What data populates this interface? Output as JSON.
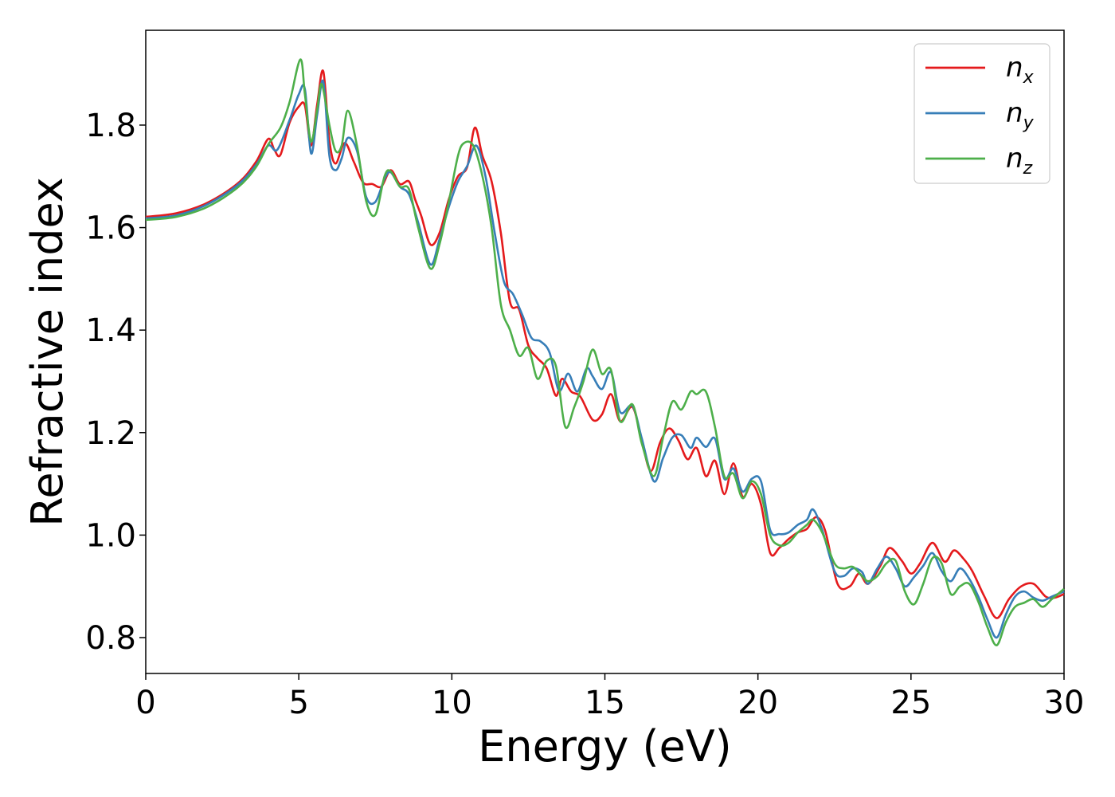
{
  "chart_data": {
    "type": "line",
    "title": "",
    "xlabel": "Energy (eV)",
    "ylabel": "Refractive index",
    "xlim": [
      0,
      30
    ],
    "ylim": [
      0.73,
      1.985
    ],
    "xticks": [
      0,
      5,
      10,
      15,
      20,
      25,
      30
    ],
    "yticks": [
      0.8,
      1.0,
      1.2,
      1.4,
      1.6,
      1.8
    ],
    "xtick_labels": [
      "0",
      "5",
      "10",
      "15",
      "20",
      "25",
      "30"
    ],
    "ytick_labels": [
      "0.8",
      "1.0",
      "1.2",
      "1.4",
      "1.6",
      "1.8"
    ],
    "grid": false,
    "legend_position": "top-right",
    "series": [
      {
        "name": "n_x",
        "label_base": "n",
        "label_sub": "x",
        "color": "#e41a1c",
        "x": [
          0,
          1,
          2,
          3,
          3.6,
          4.0,
          4.2,
          4.4,
          4.7,
          5.0,
          5.2,
          5.4,
          5.6,
          5.8,
          6.0,
          6.2,
          6.5,
          6.8,
          7.1,
          7.4,
          7.7,
          8.0,
          8.3,
          8.6,
          8.8,
          9.0,
          9.3,
          9.6,
          9.9,
          10.2,
          10.5,
          10.75,
          11.0,
          11.3,
          11.6,
          11.9,
          12.2,
          12.5,
          12.8,
          13.1,
          13.4,
          13.6,
          13.9,
          14.2,
          14.6,
          14.9,
          15.2,
          15.5,
          15.9,
          16.2,
          16.5,
          16.8,
          17.1,
          17.4,
          17.7,
          18.0,
          18.3,
          18.6,
          18.9,
          19.2,
          19.5,
          19.8,
          20.1,
          20.4,
          20.7,
          21.0,
          21.3,
          21.6,
          21.9,
          22.2,
          22.6,
          23.0,
          23.3,
          23.6,
          24.0,
          24.3,
          24.7,
          25.0,
          25.3,
          25.7,
          26.1,
          26.4,
          26.7,
          27.0,
          27.4,
          27.8,
          28.2,
          28.6,
          29.0,
          29.4,
          29.7,
          30.0
        ],
        "y": [
          1.621,
          1.628,
          1.648,
          1.686,
          1.728,
          1.773,
          1.752,
          1.742,
          1.805,
          1.836,
          1.838,
          1.76,
          1.84,
          1.905,
          1.77,
          1.725,
          1.765,
          1.728,
          1.688,
          1.685,
          1.68,
          1.712,
          1.685,
          1.69,
          1.655,
          1.623,
          1.567,
          1.59,
          1.655,
          1.7,
          1.718,
          1.795,
          1.74,
          1.69,
          1.59,
          1.455,
          1.44,
          1.37,
          1.345,
          1.325,
          1.272,
          1.305,
          1.28,
          1.27,
          1.225,
          1.235,
          1.275,
          1.222,
          1.25,
          1.185,
          1.125,
          1.18,
          1.208,
          1.185,
          1.148,
          1.17,
          1.115,
          1.145,
          1.08,
          1.14,
          1.075,
          1.1,
          1.06,
          0.965,
          0.975,
          0.992,
          1.005,
          1.012,
          1.035,
          1.008,
          0.905,
          0.9,
          0.925,
          0.905,
          0.94,
          0.975,
          0.95,
          0.925,
          0.945,
          0.985,
          0.948,
          0.97,
          0.955,
          0.93,
          0.88,
          0.838,
          0.875,
          0.9,
          0.905,
          0.88,
          0.878,
          0.885
        ]
      },
      {
        "name": "n_y",
        "label_base": "n",
        "label_sub": "y",
        "color": "#377eb8",
        "x": [
          0,
          1,
          2,
          3,
          3.6,
          4.0,
          4.3,
          4.7,
          5.0,
          5.2,
          5.4,
          5.6,
          5.8,
          6.0,
          6.2,
          6.4,
          6.6,
          6.9,
          7.2,
          7.5,
          7.8,
          8.0,
          8.3,
          8.6,
          8.9,
          9.3,
          9.6,
          9.9,
          10.2,
          10.5,
          10.8,
          11.1,
          11.4,
          11.7,
          12.0,
          12.3,
          12.6,
          12.9,
          13.2,
          13.5,
          13.8,
          14.1,
          14.4,
          14.6,
          14.9,
          15.2,
          15.5,
          15.9,
          16.2,
          16.6,
          16.9,
          17.2,
          17.5,
          17.8,
          18.0,
          18.3,
          18.6,
          18.9,
          19.2,
          19.5,
          19.8,
          20.1,
          20.4,
          20.7,
          21.0,
          21.3,
          21.6,
          21.8,
          22.1,
          22.5,
          22.8,
          23.1,
          23.4,
          23.6,
          23.9,
          24.2,
          24.5,
          24.8,
          25.1,
          25.4,
          25.7,
          26.0,
          26.3,
          26.6,
          26.9,
          27.2,
          27.5,
          27.8,
          28.1,
          28.4,
          28.7,
          29.0,
          29.3,
          29.6,
          30.0
        ],
        "y": [
          1.618,
          1.624,
          1.645,
          1.683,
          1.722,
          1.76,
          1.752,
          1.81,
          1.86,
          1.87,
          1.745,
          1.82,
          1.885,
          1.74,
          1.712,
          1.735,
          1.775,
          1.75,
          1.66,
          1.65,
          1.695,
          1.708,
          1.68,
          1.665,
          1.61,
          1.528,
          1.578,
          1.64,
          1.69,
          1.72,
          1.76,
          1.7,
          1.59,
          1.495,
          1.47,
          1.43,
          1.385,
          1.378,
          1.355,
          1.282,
          1.315,
          1.28,
          1.325,
          1.31,
          1.285,
          1.318,
          1.24,
          1.252,
          1.19,
          1.105,
          1.15,
          1.19,
          1.195,
          1.17,
          1.19,
          1.172,
          1.188,
          1.11,
          1.13,
          1.085,
          1.11,
          1.105,
          1.01,
          1.002,
          1.005,
          1.02,
          1.03,
          1.05,
          1.01,
          0.93,
          0.92,
          0.935,
          0.928,
          0.905,
          0.935,
          0.958,
          0.935,
          0.9,
          0.918,
          0.94,
          0.965,
          0.93,
          0.91,
          0.935,
          0.915,
          0.88,
          0.835,
          0.8,
          0.845,
          0.88,
          0.89,
          0.878,
          0.872,
          0.88,
          0.89
        ]
      },
      {
        "name": "n_z",
        "label_base": "n",
        "label_sub": "z",
        "color": "#4daf4a",
        "x": [
          0,
          1,
          2,
          3,
          3.6,
          4.0,
          4.4,
          4.7,
          5.05,
          5.2,
          5.4,
          5.6,
          5.75,
          6.0,
          6.2,
          6.4,
          6.6,
          6.9,
          7.2,
          7.5,
          7.8,
          8.0,
          8.3,
          8.6,
          8.9,
          9.3,
          9.6,
          9.9,
          10.2,
          10.4,
          10.7,
          11.0,
          11.3,
          11.6,
          11.9,
          12.2,
          12.5,
          12.8,
          13.1,
          13.4,
          13.7,
          14.0,
          14.3,
          14.6,
          14.9,
          15.2,
          15.5,
          15.9,
          16.2,
          16.6,
          16.9,
          17.2,
          17.5,
          17.8,
          18.0,
          18.3,
          18.6,
          18.9,
          19.2,
          19.5,
          19.8,
          20.1,
          20.4,
          20.7,
          21.0,
          21.3,
          21.6,
          21.8,
          22.1,
          22.5,
          22.8,
          23.1,
          23.4,
          23.6,
          23.9,
          24.2,
          24.5,
          24.8,
          25.1,
          25.4,
          25.7,
          26.0,
          26.3,
          26.6,
          26.9,
          27.2,
          27.5,
          27.8,
          28.1,
          28.4,
          28.7,
          29.0,
          29.3,
          29.6,
          30.0
        ],
        "y": [
          1.615,
          1.621,
          1.64,
          1.678,
          1.718,
          1.762,
          1.795,
          1.845,
          1.928,
          1.86,
          1.768,
          1.83,
          1.88,
          1.8,
          1.75,
          1.76,
          1.828,
          1.76,
          1.652,
          1.625,
          1.7,
          1.71,
          1.68,
          1.675,
          1.6,
          1.52,
          1.568,
          1.65,
          1.74,
          1.765,
          1.76,
          1.7,
          1.6,
          1.45,
          1.4,
          1.35,
          1.365,
          1.305,
          1.34,
          1.33,
          1.212,
          1.25,
          1.3,
          1.362,
          1.315,
          1.322,
          1.222,
          1.255,
          1.18,
          1.115,
          1.19,
          1.26,
          1.245,
          1.28,
          1.275,
          1.28,
          1.21,
          1.115,
          1.12,
          1.072,
          1.105,
          1.08,
          1.0,
          0.98,
          0.985,
          1.005,
          1.02,
          1.03,
          1.005,
          0.945,
          0.935,
          0.938,
          0.92,
          0.91,
          0.92,
          0.945,
          0.95,
          0.89,
          0.865,
          0.905,
          0.955,
          0.945,
          0.885,
          0.9,
          0.905,
          0.87,
          0.82,
          0.785,
          0.83,
          0.86,
          0.868,
          0.875,
          0.86,
          0.875,
          0.895
        ]
      }
    ]
  }
}
